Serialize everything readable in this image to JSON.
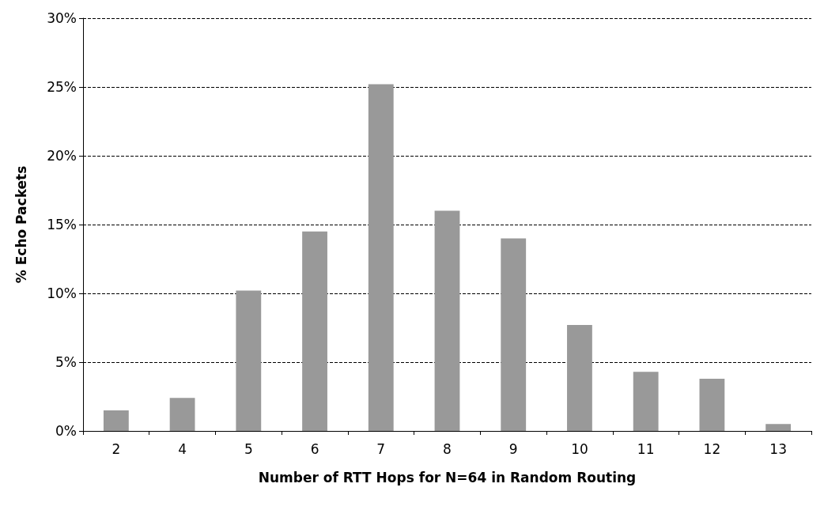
{
  "chart_data": {
    "type": "bar",
    "xlabel": "Number of RTT Hops for N=64 in Random Routing",
    "ylabel": "% Echo Packets",
    "categories": [
      "2",
      "4",
      "5",
      "6",
      "7",
      "8",
      "9",
      "10",
      "11",
      "12",
      "13"
    ],
    "values": [
      1.5,
      2.4,
      10.2,
      14.5,
      25.2,
      16.0,
      14.0,
      7.7,
      4.3,
      3.8,
      0.5
    ],
    "color": "#999999",
    "ylim": [
      0,
      30
    ],
    "yticks": [
      {
        "value": 0,
        "label": "0%"
      },
      {
        "value": 5,
        "label": "5%"
      },
      {
        "value": 10,
        "label": "10%"
      },
      {
        "value": 15,
        "label": "15%"
      },
      {
        "value": 20,
        "label": "20%"
      },
      {
        "value": 25,
        "label": "25%"
      },
      {
        "value": 30,
        "label": "30%"
      }
    ],
    "grid": "y"
  }
}
